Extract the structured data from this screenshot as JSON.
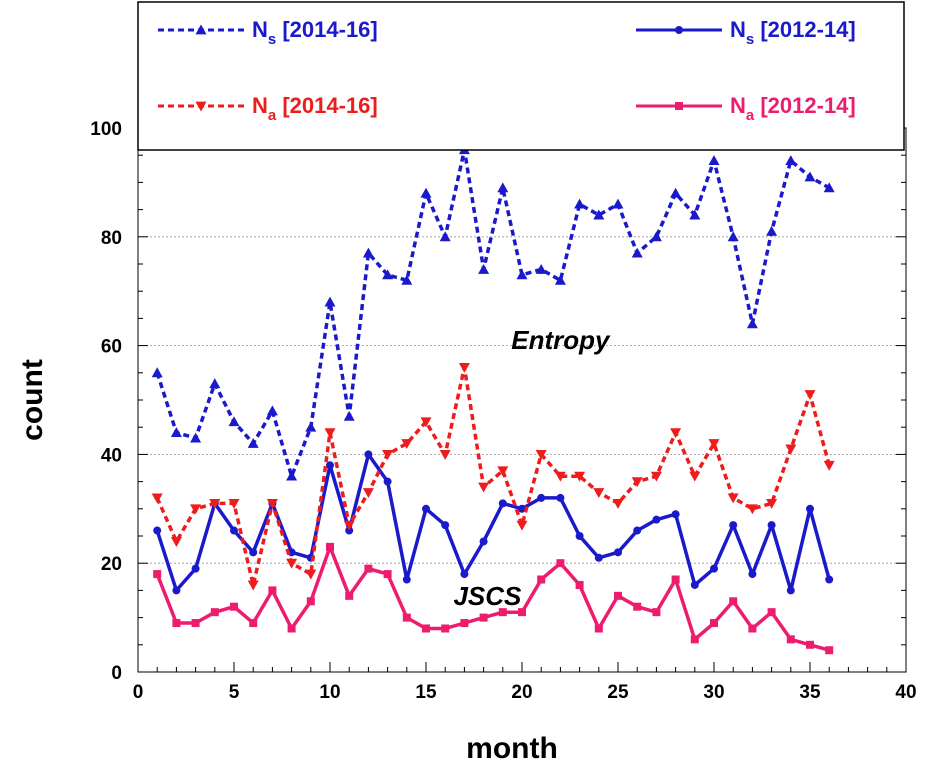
{
  "chart_data": {
    "type": "line",
    "xlabel": "month",
    "ylabel": "count",
    "xlim": [
      0,
      40
    ],
    "ylim": [
      0,
      100
    ],
    "x_ticks": [
      "0",
      "5",
      "10",
      "15",
      "20",
      "25",
      "30",
      "35",
      "40"
    ],
    "y_ticks": [
      "0",
      "20",
      "40",
      "60",
      "80",
      "100"
    ],
    "grid": "horizontal dashed",
    "legend": {
      "placement": "top",
      "entries": [
        {
          "main": "N",
          "sub": "s",
          "period": " [2014-16]",
          "color": "#1a1acc"
        },
        {
          "main": "N",
          "sub": "s",
          "period": " [2012-14]",
          "color": "#1a1acc"
        },
        {
          "main": "N",
          "sub": "a",
          "period": " [2014-16]",
          "color": "#ee1c1c"
        },
        {
          "main": "N",
          "sub": "a",
          "period": " [2012-14]",
          "color": "#ee1c6e"
        }
      ]
    },
    "annotations": [
      {
        "text": "Entropy",
        "x": 22,
        "y": 61
      },
      {
        "text": "JSCS",
        "x": 18.2,
        "y": 14
      }
    ],
    "x": [
      1,
      2,
      3,
      4,
      5,
      6,
      7,
      8,
      9,
      10,
      11,
      12,
      13,
      14,
      15,
      16,
      17,
      18,
      19,
      20,
      21,
      22,
      23,
      24,
      25,
      26,
      27,
      28,
      29,
      30,
      31,
      32,
      33,
      34,
      35,
      36
    ],
    "series": [
      {
        "name": "Ns [2014-16]",
        "color": "#1a1acc",
        "line": "dashed",
        "marker": "triangle-up",
        "values": [
          55,
          44,
          43,
          53,
          46,
          42,
          48,
          36,
          45,
          68,
          47,
          77,
          73,
          72,
          88,
          80,
          96,
          74,
          89,
          73,
          74,
          72,
          86,
          84,
          86,
          77,
          80,
          88,
          84,
          94,
          80,
          64,
          81,
          94,
          91,
          89
        ]
      },
      {
        "name": "Ns [2012-14]",
        "color": "#1a1acc",
        "line": "solid",
        "marker": "circle",
        "values": [
          26,
          15,
          19,
          31,
          26,
          22,
          31,
          22,
          21,
          38,
          26,
          40,
          35,
          17,
          30,
          27,
          18,
          24,
          31,
          30,
          32,
          32,
          25,
          21,
          22,
          26,
          28,
          29,
          16,
          19,
          27,
          18,
          27,
          15,
          30,
          17
        ]
      },
      {
        "name": "Na [2014-16]",
        "color": "#ee1c1c",
        "line": "dashed",
        "marker": "triangle-down",
        "values": [
          32,
          24,
          30,
          31,
          31,
          16,
          31,
          20,
          18,
          44,
          27,
          33,
          40,
          42,
          46,
          40,
          56,
          34,
          37,
          27,
          40,
          36,
          36,
          33,
          31,
          35,
          36,
          44,
          36,
          42,
          32,
          30,
          31,
          41,
          51,
          38
        ]
      },
      {
        "name": "Na [2012-14]",
        "color": "#ee1c6e",
        "line": "solid",
        "marker": "square",
        "values": [
          18,
          9,
          9,
          11,
          12,
          9,
          15,
          8,
          13,
          23,
          14,
          19,
          18,
          10,
          8,
          8,
          9,
          10,
          11,
          11,
          17,
          20,
          16,
          8,
          14,
          12,
          11,
          17,
          6,
          9,
          13,
          8,
          11,
          6,
          5,
          4
        ]
      }
    ]
  }
}
